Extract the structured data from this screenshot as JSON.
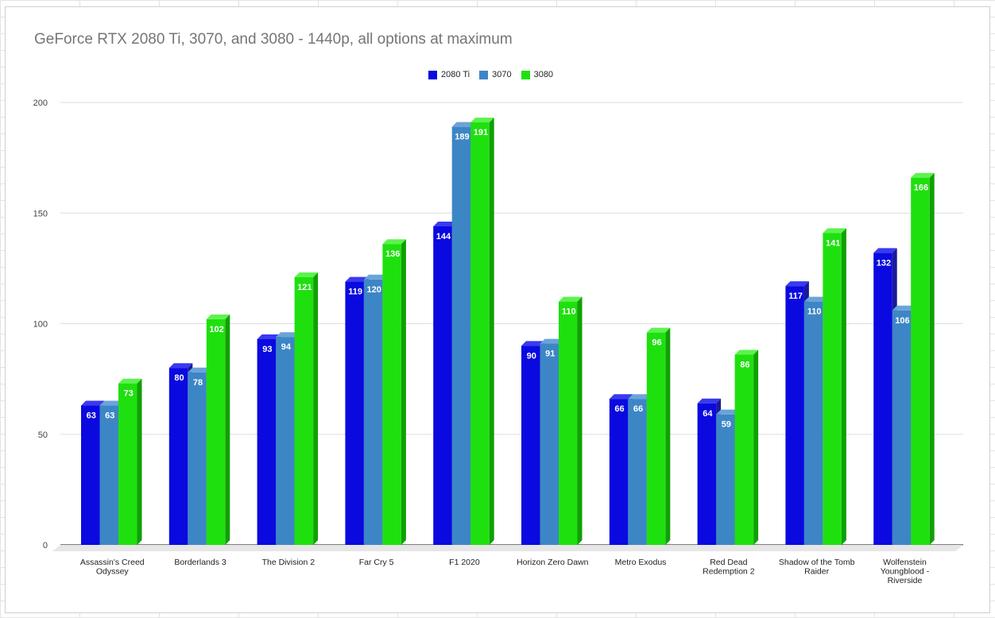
{
  "chart_data": {
    "type": "bar",
    "title": "GeForce RTX 2080 Ti, 3070, and 3080 - 1440p, all options at maximum",
    "xlabel": "",
    "ylabel": "",
    "ylim": [
      0,
      200
    ],
    "yticks": [
      "0",
      "50",
      "100",
      "150",
      "200"
    ],
    "yticks_values": [
      0,
      50,
      100,
      150,
      200
    ],
    "legend_position": "top-center",
    "grid": true,
    "categories": [
      [
        "Assassin's Creed",
        "Odyssey"
      ],
      [
        "Borderlands 3"
      ],
      [
        "The Division 2"
      ],
      [
        "Far Cry 5"
      ],
      [
        "F1 2020"
      ],
      [
        "Horizon Zero Dawn"
      ],
      [
        "Metro Exodus"
      ],
      [
        "Red Dead",
        "Redemption 2"
      ],
      [
        "Shadow of the Tomb",
        "Raider"
      ],
      [
        "Wolfenstein",
        "Youngblood -",
        "Riverside"
      ]
    ],
    "series": [
      {
        "name": "2080 Ti",
        "color": "#0a0ae0",
        "side": "#1a1a9a",
        "top": "#3a3af0",
        "values": [
          63,
          80,
          93,
          119,
          144,
          90,
          66,
          64,
          117,
          132
        ]
      },
      {
        "name": "3070",
        "color": "#3d86c6",
        "side": "#2a5f90",
        "top": "#6aa4d8",
        "values": [
          63,
          78,
          94,
          120,
          189,
          91,
          66,
          59,
          110,
          106
        ]
      },
      {
        "name": "3080",
        "color": "#1fe00f",
        "side": "#10a005",
        "top": "#5cf34e",
        "values": [
          73,
          102,
          121,
          136,
          191,
          110,
          96,
          86,
          141,
          166
        ]
      }
    ]
  }
}
